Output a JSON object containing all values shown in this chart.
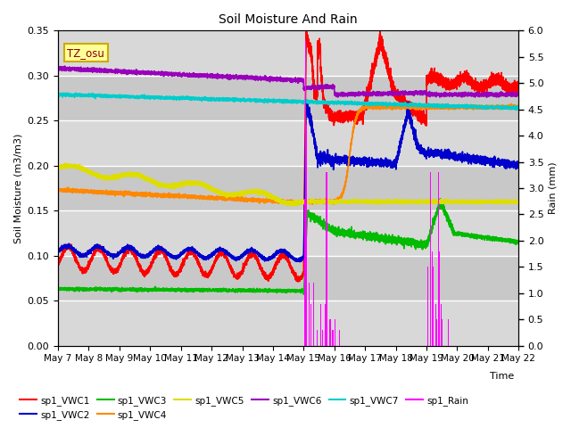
{
  "title": "Soil Moisture And Rain",
  "xlabel": "Time",
  "ylabel_left": "Soil Moisture (m3/m3)",
  "ylabel_right": "Rain (mm)",
  "annotation": "TZ_osu",
  "ylim_left": [
    0.0,
    0.35
  ],
  "ylim_right": [
    0.0,
    6.0
  ],
  "yticks_left": [
    0.0,
    0.05,
    0.1,
    0.15,
    0.2,
    0.25,
    0.3,
    0.35
  ],
  "yticks_right": [
    0.0,
    0.5,
    1.0,
    1.5,
    2.0,
    2.5,
    3.0,
    3.5,
    4.0,
    4.5,
    5.0,
    5.5,
    6.0
  ],
  "xticklabels": [
    "May 7",
    "May 8",
    "May 9",
    "May 10",
    "May 11",
    "May 12",
    "May 13",
    "May 14",
    "May 15",
    "May 16",
    "May 17",
    "May 18",
    "May 19",
    "May 20",
    "May 21",
    "May 22"
  ],
  "colors": {
    "sp1_VWC1": "#ff0000",
    "sp1_VWC2": "#0000cc",
    "sp1_VWC3": "#00bb00",
    "sp1_VWC4": "#ff8800",
    "sp1_VWC5": "#dddd00",
    "sp1_VWC6": "#9900bb",
    "sp1_VWC7": "#00cccc",
    "sp1_Rain": "#ff00ff"
  },
  "background_color": "#ffffff",
  "plot_bg_color": "#e0e0e0",
  "grid_color": "#ffffff",
  "band_color": "#cccccc"
}
